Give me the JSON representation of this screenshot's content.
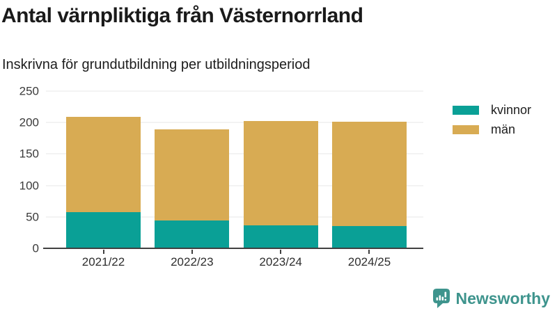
{
  "title": "Antal värnpliktiga från Västernorrland",
  "subtitle": "Inskrivna för grundutbildning per utbildningsperiod",
  "chart_data": {
    "type": "bar",
    "stacked": true,
    "title": "Antal värnpliktiga från Västernorrland",
    "subtitle": "Inskrivna för grundutbildning per utbildningsperiod",
    "categories": [
      "2021/22",
      "2022/23",
      "2023/24",
      "2024/25"
    ],
    "series": [
      {
        "name": "kvinnor",
        "color": "#0aa096",
        "values": [
          57,
          44,
          37,
          35
        ]
      },
      {
        "name": "män",
        "color": "#d8ab53",
        "values": [
          152,
          145,
          165,
          166
        ]
      }
    ],
    "xlabel": "",
    "ylabel": "",
    "ylim": [
      0,
      250
    ],
    "yticks": [
      0,
      50,
      100,
      150,
      200,
      250
    ],
    "grid": true,
    "legend_position": "right"
  },
  "legend": {
    "items": [
      {
        "label": "kvinnor",
        "color": "#0aa096"
      },
      {
        "label": "män",
        "color": "#d8ab53"
      }
    ]
  },
  "branding": {
    "logo_text": "Newsworthy",
    "logo_color": "#3e948d",
    "icon": "speech-bubble-bar-chart-icon"
  },
  "colors": {
    "background": "#ffffff",
    "title_text": "#1a1a1a",
    "axis_text": "#3b3b3b",
    "gridline": "#e7e7e7",
    "axis_line": "#404040"
  }
}
